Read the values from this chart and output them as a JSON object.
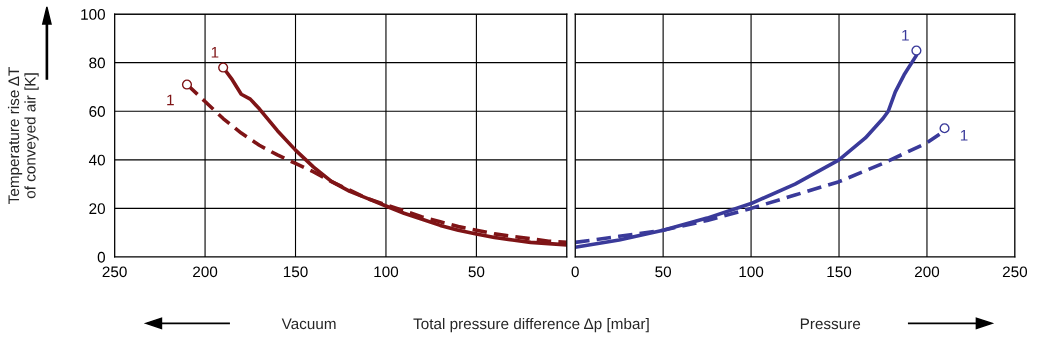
{
  "chart_data": [
    {
      "type": "line",
      "ylabel": "Temperature rise ΔT\nof conveyed air [K]",
      "xlabel": "Total pressure difference Δp [mbar]",
      "xlim": [
        250,
        0
      ],
      "xticks": [
        250,
        200,
        150,
        100,
        50,
        {
          "value": 0,
          "label": null
        }
      ],
      "ylim": [
        0,
        100
      ],
      "yticks": [
        0,
        20,
        40,
        60,
        80,
        100
      ],
      "grid": true,
      "series": [
        {
          "line_style": "solid",
          "color": "#7f1416",
          "x": [
            190,
            185,
            180,
            175,
            170,
            160,
            150,
            140,
            130,
            120,
            110,
            100,
            90,
            80,
            70,
            60,
            50,
            40,
            30,
            20,
            10,
            0
          ],
          "values": [
            78,
            73,
            67,
            65,
            61,
            52,
            44,
            37,
            31,
            27,
            24,
            21,
            18,
            15.5,
            13,
            11,
            9.5,
            8,
            7,
            6,
            5.5,
            5
          ]
        },
        {
          "line_style": "dashed",
          "color": "#7f1416",
          "x": [
            210,
            200,
            190,
            180,
            170,
            160,
            150,
            140,
            130,
            120,
            110,
            100,
            90,
            80,
            70,
            60,
            50,
            40,
            30,
            20,
            10,
            0
          ],
          "values": [
            71,
            64,
            57,
            51,
            46,
            42,
            38.5,
            35,
            31,
            27.5,
            24,
            21.5,
            19,
            16.5,
            14.5,
            12.5,
            11,
            9.5,
            8.5,
            7.5,
            6.5,
            6
          ]
        },
        {
          "type": "scatter",
          "marker": "circle",
          "color": "#7f1416",
          "x": [
            190,
            210
          ],
          "values": [
            78,
            71
          ]
        }
      ],
      "annotations": [
        {
          "text": "1",
          "x": 190,
          "y": 78
        },
        {
          "text": "1",
          "x": 210,
          "y": 71
        },
        "Vacuum"
      ]
    },
    {
      "type": "line",
      "tick_labels": "x",
      "xlim": [
        0,
        250
      ],
      "xticks": [
        0,
        50,
        100,
        150,
        200,
        250
      ],
      "ylim": [
        0,
        100
      ],
      "yticks": [
        0,
        20,
        40,
        60,
        80,
        100
      ],
      "grid": true,
      "series": [
        {
          "line_style": "solid",
          "color": "#3a3a9a",
          "x": [
            0,
            25,
            50,
            75,
            100,
            125,
            150,
            165,
            175,
            178,
            182,
            187,
            194
          ],
          "values": [
            4,
            7,
            11,
            16,
            22,
            30,
            40,
            49,
            57,
            60,
            68,
            75,
            83
          ]
        },
        {
          "line_style": "dashed",
          "color": "#3a3a9a",
          "x": [
            0,
            25,
            50,
            75,
            100,
            125,
            150,
            175,
            200,
            210
          ],
          "values": [
            6,
            8.5,
            11,
            15,
            20,
            25.5,
            31,
            38.5,
            47,
            52
          ]
        },
        {
          "type": "scatter",
          "marker": "circle",
          "color": "#3a3a9a",
          "x": [
            194,
            210
          ],
          "values": [
            85,
            53
          ]
        }
      ],
      "annotations": [
        {
          "text": "1",
          "x": 194,
          "y": 85
        },
        {
          "text": "1",
          "x": 210,
          "y": 53
        },
        "Pressure"
      ]
    }
  ]
}
